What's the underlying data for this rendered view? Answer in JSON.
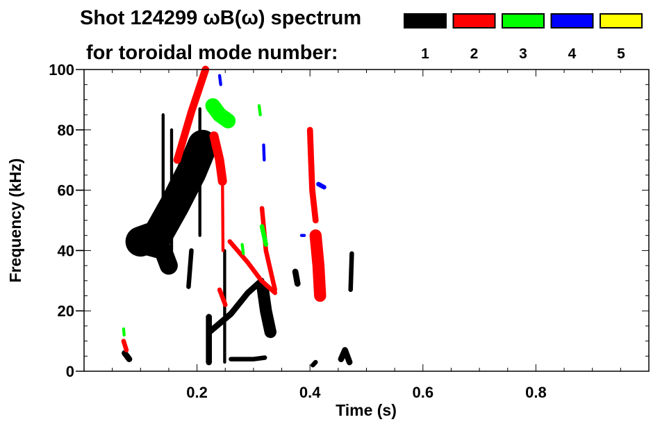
{
  "chart_data": {
    "type": "heatmap",
    "title": "Shot 124299 ωB(ω) spectrum",
    "subtitle": "for toroidal mode number:",
    "xlabel": "Time (s)",
    "ylabel": "Frequency (kHz)",
    "xlim": [
      0,
      1.0
    ],
    "ylim": [
      0,
      100
    ],
    "x_ticks": [
      "0.2",
      "0.4",
      "0.6",
      "0.8"
    ],
    "x_tick_values": [
      0.2,
      0.4,
      0.6,
      0.8
    ],
    "y_ticks": [
      "0",
      "20",
      "40",
      "60",
      "80",
      "100"
    ],
    "y_tick_values": [
      0,
      20,
      40,
      60,
      80,
      100
    ],
    "legend": [
      {
        "label": "1",
        "color": "#000000"
      },
      {
        "label": "2",
        "color": "#ff0000"
      },
      {
        "label": "3",
        "color": "#00ff00"
      },
      {
        "label": "4",
        "color": "#0000ff"
      },
      {
        "label": "5",
        "color": "#ffff00"
      }
    ],
    "features": [
      {
        "mode": 1,
        "width_khz": 10,
        "points": [
          [
            0.1,
            43
          ],
          [
            0.13,
            45
          ],
          [
            0.16,
            55
          ],
          [
            0.19,
            66
          ],
          [
            0.21,
            75
          ]
        ]
      },
      {
        "mode": 1,
        "width_khz": 6,
        "points": [
          [
            0.1,
            42
          ],
          [
            0.14,
            40
          ],
          [
            0.15,
            35
          ]
        ]
      },
      {
        "mode": 1,
        "width_khz": 2,
        "points": [
          [
            0.072,
            6
          ],
          [
            0.08,
            4
          ]
        ]
      },
      {
        "mode": 1,
        "width_khz": 1,
        "points": [
          [
            0.14,
            85
          ],
          [
            0.14,
            45
          ]
        ]
      },
      {
        "mode": 1,
        "width_khz": 1,
        "points": [
          [
            0.155,
            80
          ],
          [
            0.155,
            40
          ]
        ]
      },
      {
        "mode": 1,
        "width_khz": 1.5,
        "points": [
          [
            0.19,
            40
          ],
          [
            0.185,
            28
          ]
        ]
      },
      {
        "mode": 1,
        "width_khz": 1,
        "points": [
          [
            0.205,
            87
          ],
          [
            0.205,
            45
          ]
        ]
      },
      {
        "mode": 1,
        "width_khz": 2,
        "points": [
          [
            0.221,
            18
          ],
          [
            0.221,
            3
          ]
        ]
      },
      {
        "mode": 1,
        "width_khz": 2,
        "points": [
          [
            0.222,
            13
          ],
          [
            0.26,
            19
          ],
          [
            0.29,
            26
          ],
          [
            0.314,
            30
          ]
        ]
      },
      {
        "mode": 1,
        "width_khz": 1,
        "points": [
          [
            0.249,
            40
          ],
          [
            0.249,
            3
          ]
        ]
      },
      {
        "mode": 1,
        "width_khz": 4,
        "points": [
          [
            0.316,
            28
          ],
          [
            0.322,
            20
          ],
          [
            0.33,
            13
          ]
        ]
      },
      {
        "mode": 1,
        "width_khz": 1.5,
        "points": [
          [
            0.26,
            4
          ],
          [
            0.3,
            4
          ],
          [
            0.32,
            4.5
          ]
        ]
      },
      {
        "mode": 1,
        "width_khz": 2,
        "points": [
          [
            0.374,
            33
          ],
          [
            0.378,
            29
          ]
        ]
      },
      {
        "mode": 1,
        "width_khz": 1.5,
        "points": [
          [
            0.474,
            39
          ],
          [
            0.472,
            27
          ]
        ]
      },
      {
        "mode": 1,
        "width_khz": 2,
        "points": [
          [
            0.455,
            4
          ],
          [
            0.462,
            7
          ],
          [
            0.47,
            3
          ]
        ]
      },
      {
        "mode": 1,
        "width_khz": 1.5,
        "points": [
          [
            0.405,
            2
          ],
          [
            0.41,
            3
          ]
        ]
      },
      {
        "mode": 2,
        "width_khz": 2.5,
        "points": [
          [
            0.165,
            70
          ],
          [
            0.19,
            86
          ],
          [
            0.215,
            100
          ]
        ]
      },
      {
        "mode": 2,
        "width_khz": 3,
        "points": [
          [
            0.23,
            78
          ],
          [
            0.24,
            70
          ],
          [
            0.245,
            63
          ]
        ]
      },
      {
        "mode": 2,
        "width_khz": 1,
        "points": [
          [
            0.245,
            65
          ],
          [
            0.246,
            40
          ]
        ]
      },
      {
        "mode": 2,
        "width_khz": 1.5,
        "points": [
          [
            0.258,
            43
          ],
          [
            0.29,
            36
          ],
          [
            0.314,
            30
          ],
          [
            0.338,
            26
          ]
        ]
      },
      {
        "mode": 2,
        "width_khz": 1.5,
        "points": [
          [
            0.315,
            54
          ],
          [
            0.322,
            40
          ],
          [
            0.338,
            27
          ]
        ]
      },
      {
        "mode": 2,
        "width_khz": 2,
        "points": [
          [
            0.4,
            80
          ],
          [
            0.402,
            70
          ],
          [
            0.404,
            60
          ],
          [
            0.41,
            50
          ]
        ]
      },
      {
        "mode": 2,
        "width_khz": 4,
        "points": [
          [
            0.41,
            45
          ],
          [
            0.415,
            35
          ],
          [
            0.418,
            25
          ]
        ]
      },
      {
        "mode": 2,
        "width_khz": 1.5,
        "points": [
          [
            0.07,
            10
          ],
          [
            0.075,
            7
          ]
        ]
      },
      {
        "mode": 2,
        "width_khz": 1.5,
        "points": [
          [
            0.24,
            27
          ],
          [
            0.25,
            22
          ]
        ]
      },
      {
        "mode": 3,
        "width_khz": 5,
        "points": [
          [
            0.228,
            88
          ],
          [
            0.24,
            85
          ],
          [
            0.255,
            83
          ]
        ]
      },
      {
        "mode": 3,
        "width_khz": 1.5,
        "points": [
          [
            0.315,
            48
          ],
          [
            0.322,
            42
          ]
        ]
      },
      {
        "mode": 3,
        "width_khz": 1,
        "points": [
          [
            0.31,
            88
          ],
          [
            0.312,
            85
          ]
        ]
      },
      {
        "mode": 3,
        "width_khz": 1,
        "points": [
          [
            0.28,
            42
          ],
          [
            0.282,
            39
          ]
        ]
      },
      {
        "mode": 3,
        "width_khz": 1,
        "points": [
          [
            0.07,
            14
          ],
          [
            0.071,
            12
          ]
        ]
      },
      {
        "mode": 4,
        "width_khz": 1.5,
        "points": [
          [
            0.415,
            62
          ],
          [
            0.425,
            61
          ]
        ]
      },
      {
        "mode": 4,
        "width_khz": 1,
        "points": [
          [
            0.24,
            98
          ],
          [
            0.242,
            95
          ]
        ]
      },
      {
        "mode": 4,
        "width_khz": 1,
        "points": [
          [
            0.318,
            75
          ],
          [
            0.319,
            70
          ]
        ]
      },
      {
        "mode": 4,
        "width_khz": 1,
        "points": [
          [
            0.385,
            45
          ],
          [
            0.39,
            45
          ]
        ]
      }
    ]
  }
}
